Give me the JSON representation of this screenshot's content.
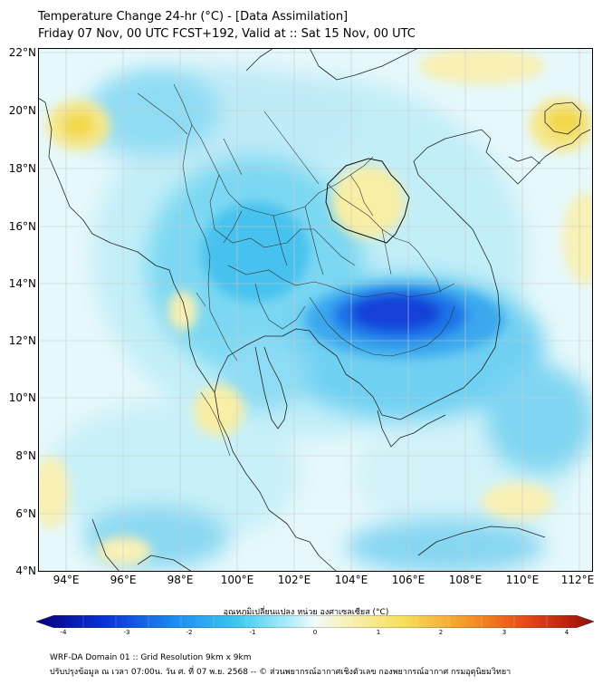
{
  "header": {
    "title_line1": "Temperature Change 24-hr (°C) - [Data Assimilation]",
    "title_line2": "Friday 07 Nov, 00 UTC FCST+192, Valid at :: Sat 15 Nov, 00 UTC"
  },
  "map": {
    "lat_range": [
      4,
      22
    ],
    "lon_range": [
      93,
      112.5
    ],
    "lat_labels": [
      "22°N",
      "20°N",
      "18°N",
      "16°N",
      "14°N",
      "12°N",
      "10°N",
      "8°N",
      "6°N",
      "4°N"
    ],
    "lon_labels": [
      "94°E",
      "96°E",
      "98°E",
      "100°E",
      "102°E",
      "104°E",
      "106°E",
      "108°E",
      "110°E",
      "112°E"
    ],
    "features": [
      {
        "name": "strong-cooling-cambodia",
        "lon": 104.8,
        "lat": 13.0,
        "value": -3.0
      },
      {
        "name": "cooling-central-thailand",
        "lon": 100.5,
        "lat": 15.5,
        "value": -1.3
      },
      {
        "name": "warming-northeast-thailand",
        "lon": 104.2,
        "lat": 17.0,
        "value": 0.9
      },
      {
        "name": "warming-myanmar-coast",
        "lon": 94.5,
        "lat": 19.3,
        "value": 1.0
      },
      {
        "name": "warming-hainan",
        "lon": 111.2,
        "lat": 19.6,
        "value": 1.1
      },
      {
        "name": "warming-gulf-thailand",
        "lon": 99.5,
        "lat": 9.5,
        "value": 0.7
      }
    ]
  },
  "colorbar": {
    "label": "อุณหภูมิเปลี่ยนแปลง หน่วย องศาเซลเซียส (°C)",
    "min": -4,
    "max": 4,
    "ticks": [
      "-4",
      "-3",
      "-2",
      "-1",
      "0",
      "1",
      "2",
      "3",
      "4"
    ],
    "colors": [
      "#08007a",
      "#0a30d8",
      "#1e8cf0",
      "#3cc8f0",
      "#a8ecfa",
      "#f0fbfa",
      "#f8f0b4",
      "#f6df5a",
      "#f59a28",
      "#e84818",
      "#9a0c08"
    ]
  },
  "footer": {
    "line1": "WRF-DA Domain 01 :: Grid Resolution 9km x 9km",
    "line2": "ปรับปรุงข้อมูล ณ เวลา 07:00น. วัน ศ. ที่ 07 พ.ย. 2568 -- © ส่วนพยากรณ์อากาศเชิงตัวเลข กองพยากรณ์อากาศ กรมอุตุนิยมวิทยา"
  }
}
